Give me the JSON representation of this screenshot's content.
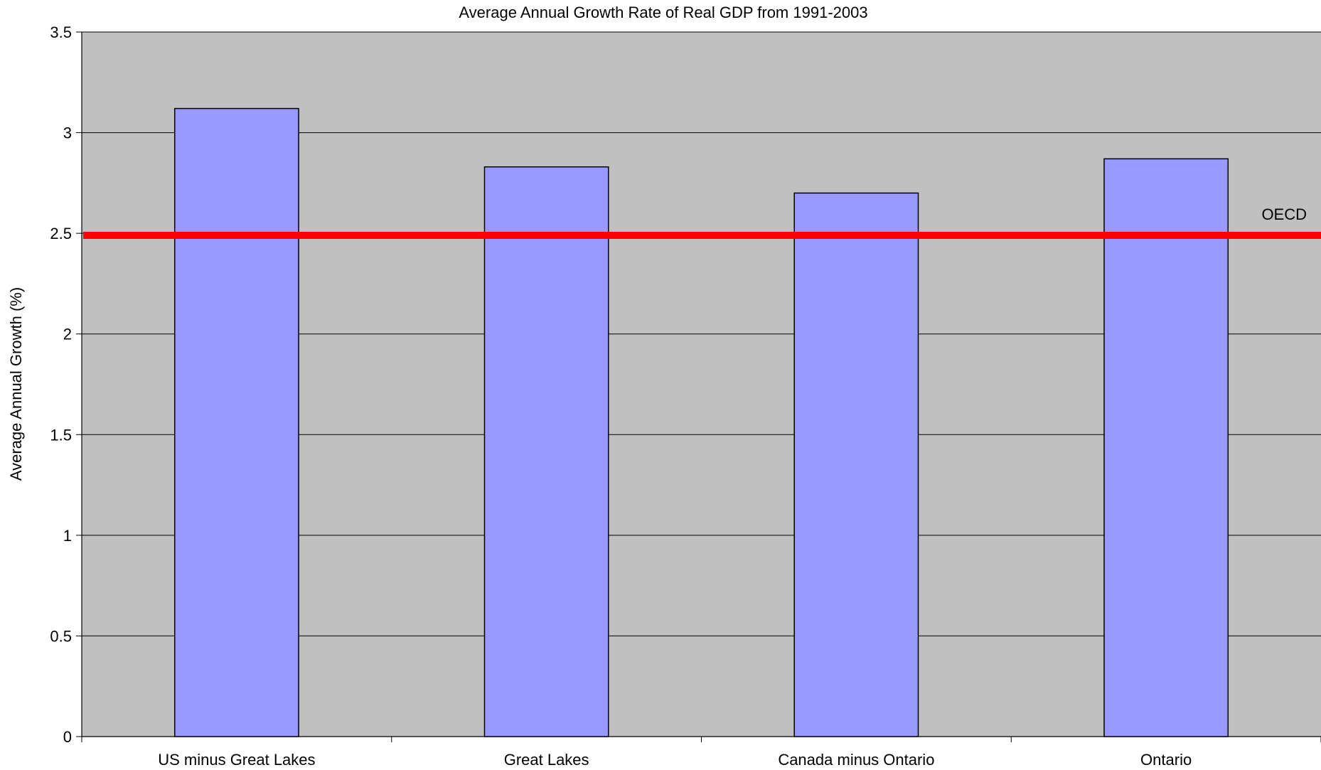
{
  "chart_data": {
    "type": "bar",
    "title": "Average Annual Growth Rate of Real GDP from 1991-2003",
    "y_label": "Average Annual Growth (%)",
    "categories": [
      "US minus Great Lakes",
      "Great Lakes",
      "Canada minus Ontario",
      "Ontario"
    ],
    "values": [
      3.12,
      2.83,
      2.7,
      2.87
    ],
    "color": "#9999ff",
    "ylim": [
      0,
      3.5
    ],
    "yticks": [
      0,
      0.5,
      1,
      1.5,
      2,
      2.5,
      3,
      3.5
    ],
    "grid": true,
    "reference_lines": [
      {
        "label": "OECD",
        "value": 2.49,
        "color": "#ff0000"
      }
    ]
  }
}
